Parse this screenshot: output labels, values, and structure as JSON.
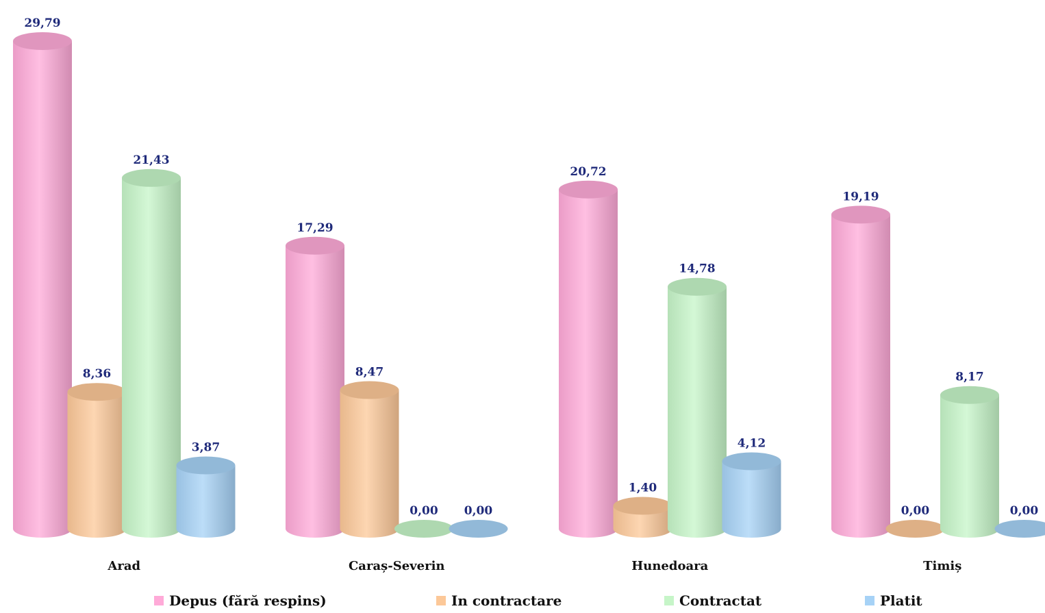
{
  "chart_data": {
    "type": "bar",
    "categories": [
      "Arad",
      "Caraș-Severin",
      "Hunedoara",
      "Timiș"
    ],
    "series": [
      {
        "name": "Depus (fără respins)",
        "values": [
          29.79,
          17.29,
          20.72,
          19.19
        ],
        "labels": [
          "29,79",
          "17,29",
          "20,72",
          "19,19"
        ],
        "color": "#ffaad8"
      },
      {
        "name": "In contractare",
        "values": [
          8.36,
          8.47,
          1.4,
          0.0
        ],
        "labels": [
          "8,36",
          "8,47",
          "1,40",
          "0,00"
        ],
        "color": "#fcc898"
      },
      {
        "name": "Contractat",
        "values": [
          21.43,
          0.0,
          14.78,
          8.17
        ],
        "labels": [
          "21,43",
          "0,00",
          "14,78",
          "8,17"
        ],
        "color": "#c6f5c8"
      },
      {
        "name": "Platit",
        "values": [
          3.87,
          0.0,
          4.12,
          0.0
        ],
        "labels": [
          "3,87",
          "0,00",
          "4,12",
          "0,00"
        ],
        "color": "#a6d2f6"
      }
    ],
    "ylim": [
      0,
      29.79
    ],
    "grid": false,
    "legend_position": "bottom"
  }
}
